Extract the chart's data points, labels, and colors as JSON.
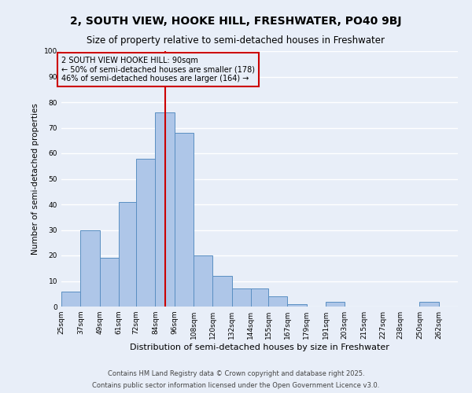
{
  "title": "2, SOUTH VIEW, HOOKE HILL, FRESHWATER, PO40 9BJ",
  "subtitle": "Size of property relative to semi-detached houses in Freshwater",
  "xlabel": "Distribution of semi-detached houses by size in Freshwater",
  "ylabel": "Number of semi-detached properties",
  "bin_labels": [
    "25sqm",
    "37sqm",
    "49sqm",
    "61sqm",
    "72sqm",
    "84sqm",
    "96sqm",
    "108sqm",
    "120sqm",
    "132sqm",
    "144sqm",
    "155sqm",
    "167sqm",
    "179sqm",
    "191sqm",
    "203sqm",
    "215sqm",
    "227sqm",
    "238sqm",
    "250sqm",
    "262sqm"
  ],
  "bin_edges": [
    25,
    37,
    49,
    61,
    72,
    84,
    96,
    108,
    120,
    132,
    144,
    155,
    167,
    179,
    191,
    203,
    215,
    227,
    238,
    250,
    262,
    274
  ],
  "counts": [
    6,
    30,
    19,
    41,
    58,
    76,
    68,
    20,
    12,
    7,
    7,
    4,
    1,
    0,
    2,
    0,
    0,
    0,
    0,
    2,
    0
  ],
  "bar_color": "#aec6e8",
  "bar_edge_color": "#5a8fc2",
  "background_color": "#e8eef8",
  "grid_color": "#ffffff",
  "vline_x": 90,
  "vline_color": "#cc0000",
  "annotation_title": "2 SOUTH VIEW HOOKE HILL: 90sqm",
  "annotation_line1": "← 50% of semi-detached houses are smaller (178)",
  "annotation_line2": "46% of semi-detached houses are larger (164) →",
  "annotation_box_color": "#cc0000",
  "ylim": [
    0,
    100
  ],
  "yticks": [
    0,
    10,
    20,
    30,
    40,
    50,
    60,
    70,
    80,
    90,
    100
  ],
  "footnote1": "Contains HM Land Registry data © Crown copyright and database right 2025.",
  "footnote2": "Contains public sector information licensed under the Open Government Licence v3.0.",
  "title_fontsize": 10,
  "subtitle_fontsize": 8.5,
  "ylabel_fontsize": 7.5,
  "xlabel_fontsize": 8,
  "tick_fontsize": 6.5,
  "annotation_fontsize": 7,
  "footnote_fontsize": 6
}
